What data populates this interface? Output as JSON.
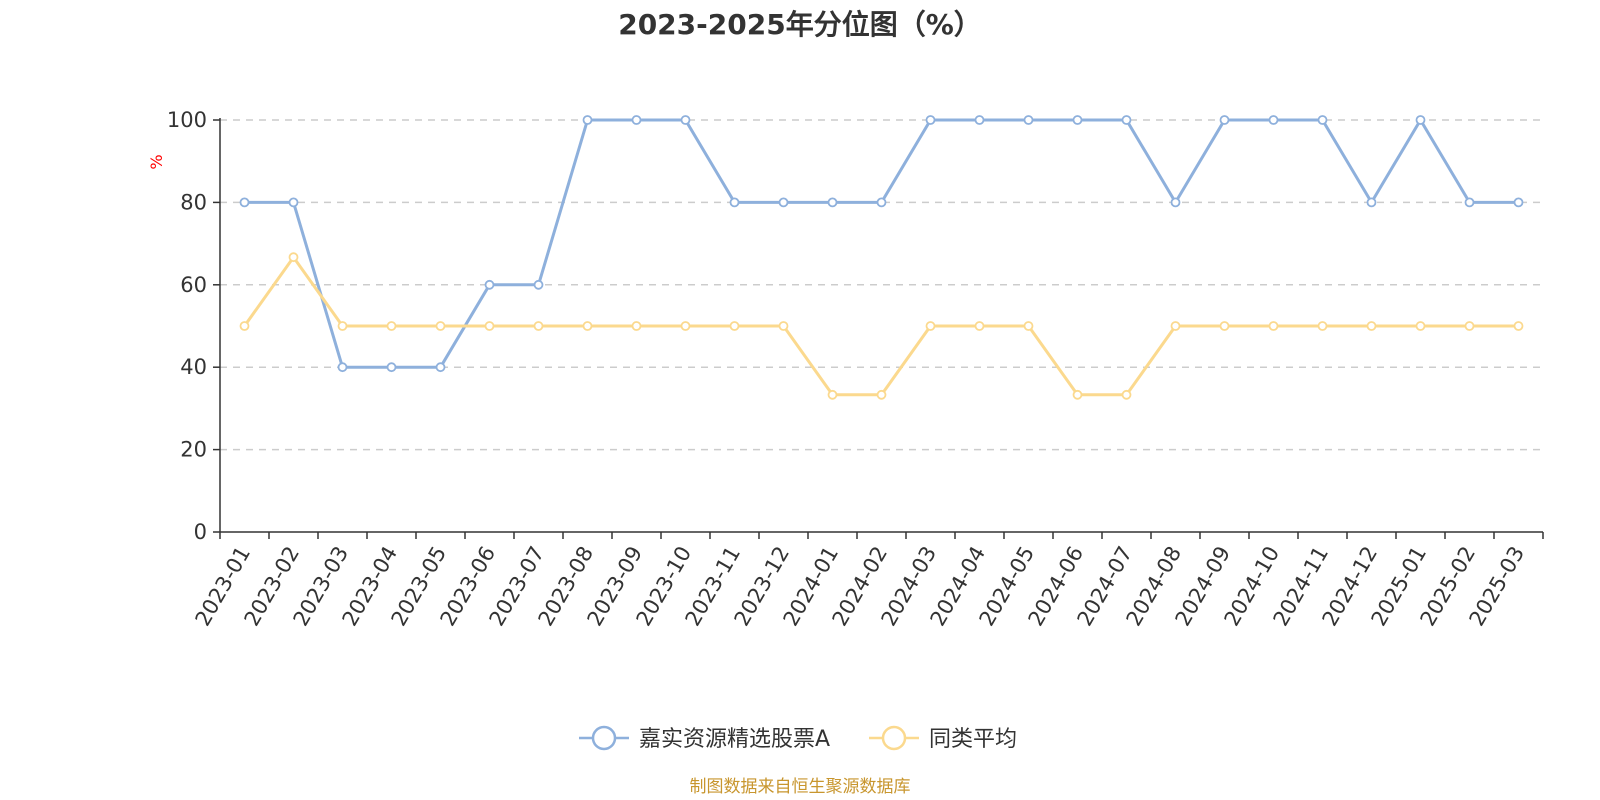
{
  "chart_data": {
    "type": "line",
    "title": "2023-2025年分位图（%）",
    "ylabel": "%",
    "xlabel": "",
    "ylim": [
      0,
      100
    ],
    "yticks": [
      0,
      20,
      40,
      60,
      80,
      100
    ],
    "grid": "horizontal-dashed",
    "legend_position": "bottom-center",
    "categories": [
      "2023-01",
      "2023-02",
      "2023-03",
      "2023-04",
      "2023-05",
      "2023-06",
      "2023-07",
      "2023-08",
      "2023-09",
      "2023-10",
      "2023-11",
      "2023-12",
      "2024-01",
      "2024-02",
      "2024-03",
      "2024-04",
      "2024-05",
      "2024-06",
      "2024-07",
      "2024-08",
      "2024-09",
      "2024-10",
      "2024-11",
      "2024-12",
      "2025-01",
      "2025-02",
      "2025-03"
    ],
    "series": [
      {
        "name": "嘉实资源精选股票A",
        "color": "#8eb0dc",
        "values": [
          80,
          80,
          40,
          40,
          40,
          60,
          60,
          100,
          100,
          100,
          80,
          80,
          80,
          80,
          100,
          100,
          100,
          100,
          100,
          80,
          100,
          100,
          100,
          80,
          100,
          80,
          80
        ]
      },
      {
        "name": "同类平均",
        "color": "#fbd98e",
        "values": [
          50,
          66.7,
          50,
          50,
          50,
          50,
          50,
          50,
          50,
          50,
          50,
          50,
          33.3,
          33.3,
          50,
          50,
          50,
          33.3,
          33.3,
          50,
          50,
          50,
          50,
          50,
          50,
          50,
          50
        ]
      }
    ],
    "source": "制图数据来自恒生聚源数据库"
  }
}
